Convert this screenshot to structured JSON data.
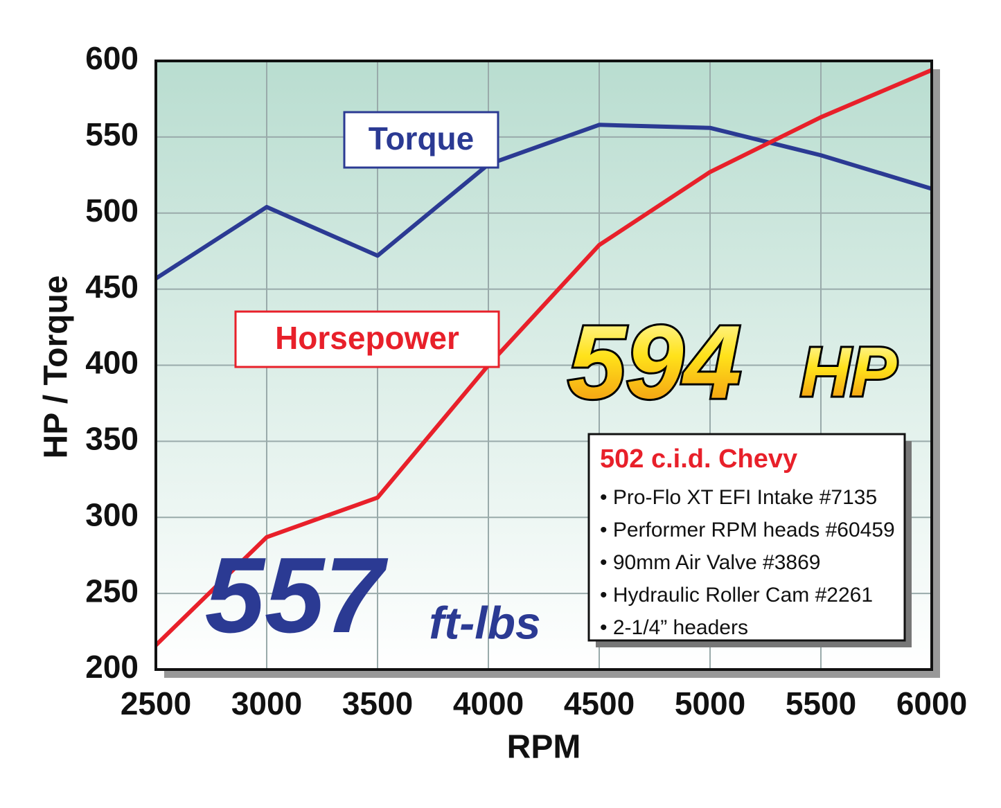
{
  "chart_data": {
    "type": "line",
    "x": [
      2500,
      3000,
      3500,
      4000,
      4500,
      5000,
      5500,
      6000
    ],
    "series": [
      {
        "name": "Torque",
        "color": "#2b3a93",
        "values": [
          457,
          504,
          472,
          532,
          558,
          556,
          538,
          516
        ]
      },
      {
        "name": "Horsepower",
        "color": "#e8202a",
        "values": [
          216,
          287,
          313,
          400,
          479,
          527,
          563,
          594
        ]
      }
    ],
    "xlim": [
      2500,
      6000
    ],
    "xticks": [
      2500,
      3000,
      3500,
      4000,
      4500,
      5000,
      5500,
      6000
    ],
    "ylim": [
      200,
      600
    ],
    "yticks": [
      200,
      250,
      300,
      350,
      400,
      450,
      500,
      550,
      600
    ],
    "grid": true,
    "x_label": "RPM",
    "y_label": "HP / Torque",
    "annotations": {
      "hp_value": "594",
      "hp_unit": "HP",
      "torque_value": "557",
      "torque_unit": "ft-lbs"
    },
    "spec_box": {
      "title": "502 c.i.d. Chevy",
      "items": [
        "• Pro-Flo XT EFI Intake #7135",
        "• Performer RPM heads #60459",
        "• 90mm Air Valve #3869",
        "• Hydraulic Roller Cam #2261",
        "• 2-1/4” headers"
      ]
    }
  }
}
